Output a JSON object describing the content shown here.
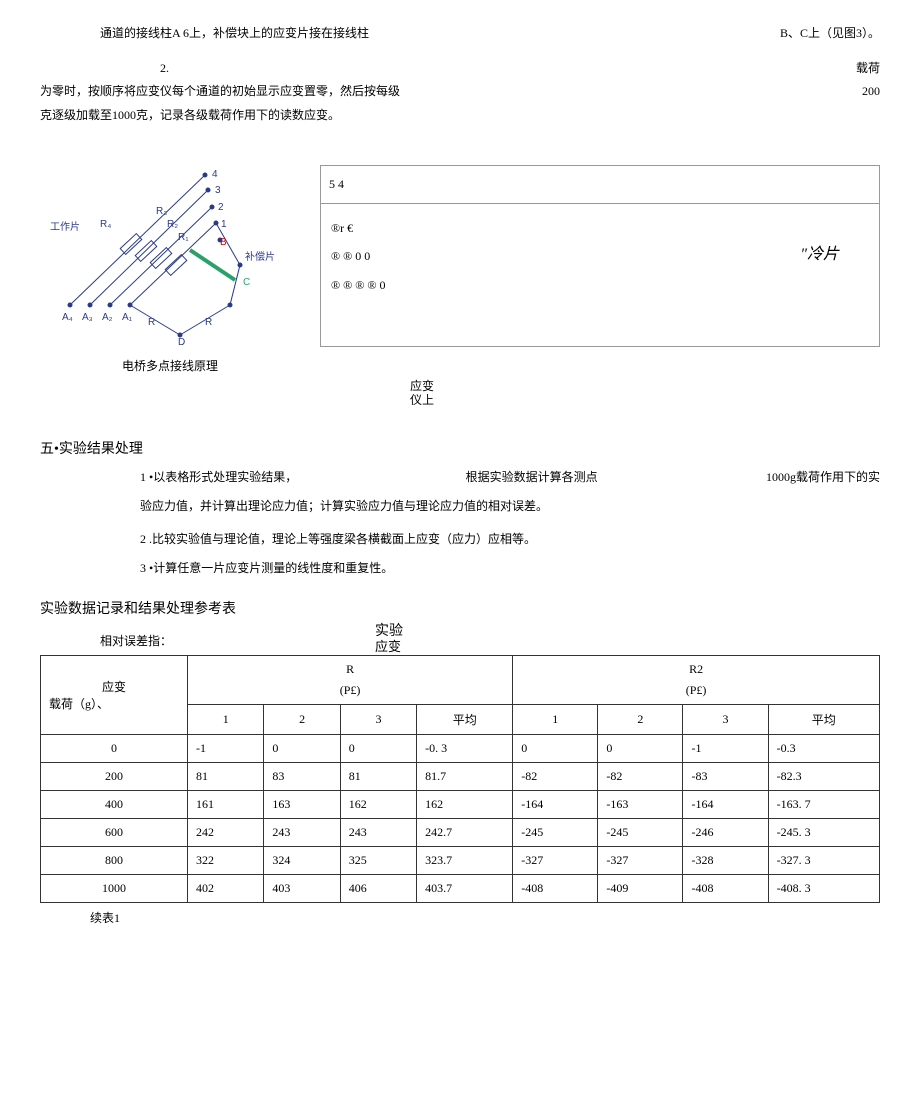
{
  "top": {
    "left1": "通道的接线柱A 6上，补偿块上的应变片接在接线柱",
    "right1": "B、C上（见图3）。",
    "step2_num": "2.",
    "step2_right": "载荷",
    "line3_left": "为零时，按顺序将应变仪每个通道的初始显示应变置零，然后按每级",
    "line3_right": "200",
    "line4": "克逐级加载至1000克，记录各级载荷作用下的读数应变。"
  },
  "diagram": {
    "labels": {
      "work": "工作片",
      "comp": "补偿片",
      "A4": "A₄",
      "A3": "A₃",
      "A2": "A₂",
      "A1": "A₁",
      "R1": "R₁",
      "R2": "R₂",
      "R3": "R₃",
      "R4": "R₄",
      "R": "R",
      "B": "B",
      "C": "C",
      "D": "D",
      "n1": "1",
      "n2": "2",
      "n3": "3",
      "n4": "4"
    },
    "caption": "电桥多点接线原理",
    "side_top": "5 4",
    "side_l1": "®r €",
    "side_l2": "® ® 0 0",
    "side_l3": "® ® ® ® 0",
    "side_cold": "″冷片",
    "sub_caption1": "应变",
    "sub_caption2": "仪上"
  },
  "section5": {
    "heading": "五•实验结果处理",
    "item1_a": "1 •以表格形式处理实验结果，",
    "item1_b": "根据实验数据计算各测点",
    "item1_c": "1000g载荷作用下的实",
    "item1_d": "验应力值，并计算出理论应力值；计算实验应力值与理论应力值的相对误差。",
    "item2": "2 .比较实验值与理论值，理论上等强度梁各横截面上应变（应力）应相等。",
    "item3": "3 •计算任意一片应变片测量的线性度和重复性。"
  },
  "table_block": {
    "title": "实验数据记录和结果处理参考表",
    "ref": "相对误差指：",
    "overlay": "实验",
    "overlay2": "应变",
    "row_header_top": "应变",
    "row_header_bot": "载荷（g）、",
    "group1": "R",
    "group2": "R2",
    "unit": "(P£)",
    "cols": [
      "1",
      "2",
      "3",
      "平均",
      "1",
      "2",
      "3",
      "平均"
    ],
    "rows": [
      {
        "load": "0",
        "v": [
          "-1",
          "0",
          "0",
          "-0. 3",
          "0",
          "0",
          "-1",
          "-0.3"
        ]
      },
      {
        "load": "200",
        "v": [
          "81",
          "83",
          "81",
          "81.7",
          "-82",
          "-82",
          "-83",
          "-82.3"
        ]
      },
      {
        "load": "400",
        "v": [
          "161",
          "163",
          "162",
          "162",
          "-164",
          "-163",
          "-164",
          "-163. 7"
        ]
      },
      {
        "load": "600",
        "v": [
          "242",
          "243",
          "243",
          "242.7",
          "-245",
          "-245",
          "-246",
          "-245. 3"
        ]
      },
      {
        "load": "800",
        "v": [
          "322",
          "324",
          "325",
          "323.7",
          "-327",
          "-327",
          "-328",
          "-327. 3"
        ]
      },
      {
        "load": "1000",
        "v": [
          "402",
          "403",
          "406",
          "403.7",
          "-408",
          "-409",
          "-408",
          "-408. 3"
        ]
      }
    ],
    "cont": "续表1"
  }
}
